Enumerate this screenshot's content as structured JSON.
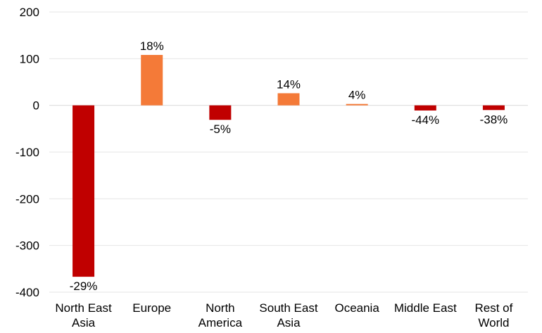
{
  "chart_data": {
    "type": "bar",
    "title": "",
    "xlabel": "",
    "ylabel": "",
    "ylim": [
      -400,
      200
    ],
    "yticks": [
      200,
      100,
      0,
      -100,
      -200,
      -300,
      -400
    ],
    "grid": true,
    "categories": [
      [
        "North East",
        "Asia"
      ],
      [
        "Europe"
      ],
      [
        "North",
        "America"
      ],
      [
        "South East",
        "Asia"
      ],
      [
        "Oceania"
      ],
      [
        "Middle East"
      ],
      [
        "Rest of",
        "World"
      ]
    ],
    "values": [
      -367,
      108,
      -31,
      26,
      3,
      -11,
      -10
    ],
    "data_labels": [
      "-29%",
      "18%",
      "-5%",
      "14%",
      "4%",
      "-44%",
      "-38%"
    ],
    "colors": {
      "positive": "#f47a38",
      "negative": "#c00000"
    }
  }
}
